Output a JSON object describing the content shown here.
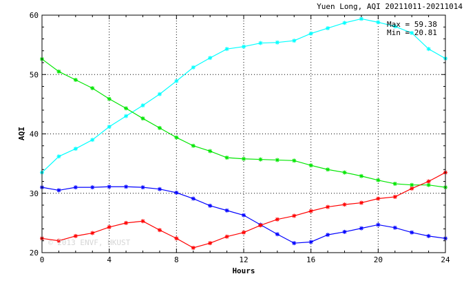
{
  "chart_data": {
    "type": "line",
    "title": "Yuen Long, AQI 20211011-20211014",
    "xlabel": "Hours",
    "ylabel": "AQI",
    "xlim": [
      0,
      24
    ],
    "ylim": [
      20,
      60
    ],
    "xticks": [
      0,
      4,
      8,
      12,
      16,
      20,
      24
    ],
    "yticks": [
      20,
      30,
      40,
      50,
      60
    ],
    "grid": true,
    "stats": {
      "max": "Max = 59.38",
      "min": "Min = 20.81"
    },
    "watermark": "© 2013 ENVF, HKUST",
    "x": [
      0,
      1,
      2,
      3,
      4,
      5,
      6,
      7,
      8,
      9,
      10,
      11,
      12,
      13,
      14,
      15,
      16,
      17,
      18,
      19,
      20,
      21,
      22,
      23,
      24
    ],
    "series": [
      {
        "color": "#00ffff",
        "values": [
          33.5,
          36.2,
          37.5,
          39.0,
          41.2,
          43.0,
          44.8,
          46.7,
          48.9,
          51.2,
          52.8,
          54.3,
          54.7,
          55.3,
          55.4,
          55.7,
          56.9,
          57.8,
          58.7,
          59.38,
          58.8,
          58.1,
          57.0,
          54.3,
          52.7
        ]
      },
      {
        "color": "#00e600",
        "values": [
          52.6,
          50.5,
          49.1,
          47.7,
          45.9,
          44.3,
          42.6,
          41.0,
          39.4,
          38.0,
          37.1,
          36.0,
          35.8,
          35.7,
          35.6,
          35.5,
          34.7,
          34.0,
          33.5,
          32.9,
          32.2,
          31.6,
          31.4,
          31.4,
          31.0
        ]
      },
      {
        "color": "#0000ff",
        "values": [
          31.0,
          30.5,
          31.0,
          31.0,
          31.1,
          31.1,
          31.0,
          30.7,
          30.1,
          29.1,
          27.9,
          27.1,
          26.3,
          24.7,
          23.1,
          21.6,
          21.8,
          23.0,
          23.5,
          24.1,
          24.7,
          24.2,
          23.4,
          22.8,
          22.4
        ]
      },
      {
        "color": "#ff0000",
        "values": [
          22.4,
          22.0,
          22.8,
          23.3,
          24.3,
          25.0,
          25.3,
          23.8,
          22.4,
          20.81,
          21.6,
          22.7,
          23.4,
          24.6,
          25.6,
          26.2,
          27.0,
          27.7,
          28.1,
          28.4,
          29.1,
          29.4,
          30.8,
          32.0,
          33.5
        ]
      }
    ]
  }
}
